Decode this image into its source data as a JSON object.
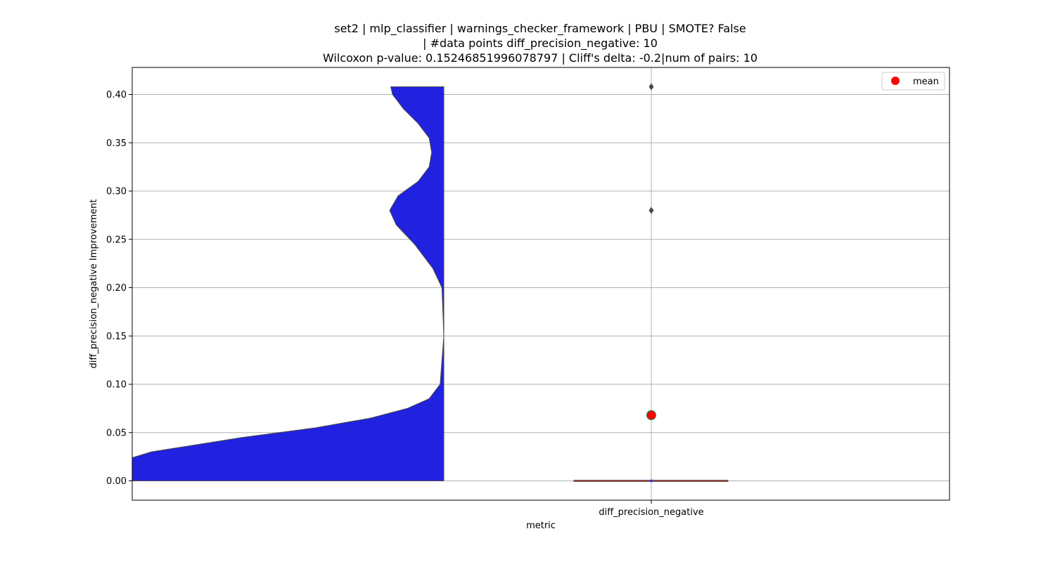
{
  "chart_data": {
    "type": "violin",
    "title_lines": [
      "set2 | mlp_classifier | warnings_checker_framework | PBU | SMOTE? False",
      "| #data points diff_precision_negative: 10",
      "Wilcoxon p-value: 0.15246851996078797 | Cliff's delta: -0.2|num of pairs: 10"
    ],
    "xlabel": "metric",
    "ylabel": "diff_precision_negative Improvement",
    "categories": [
      "diff_precision_negative"
    ],
    "ylim": [
      -0.02,
      0.428
    ],
    "yticks": [
      "0.00",
      "0.05",
      "0.10",
      "0.15",
      "0.20",
      "0.25",
      "0.30",
      "0.35",
      "0.40"
    ],
    "grid": true,
    "violin": {
      "color": "#2121e0",
      "y_min": 0.0,
      "y_max": 0.408,
      "density_profile": [
        [
          0.0,
          1.0
        ],
        [
          0.015,
          0.93
        ],
        [
          0.03,
          0.8
        ],
        [
          0.045,
          0.55
        ],
        [
          0.055,
          0.35
        ],
        [
          0.065,
          0.2
        ],
        [
          0.075,
          0.1
        ],
        [
          0.085,
          0.04
        ],
        [
          0.1,
          0.01
        ],
        [
          0.15,
          0.0
        ],
        [
          0.2,
          0.005
        ],
        [
          0.22,
          0.03
        ],
        [
          0.245,
          0.08
        ],
        [
          0.265,
          0.13
        ],
        [
          0.28,
          0.148
        ],
        [
          0.295,
          0.125
        ],
        [
          0.31,
          0.07
        ],
        [
          0.325,
          0.04
        ],
        [
          0.34,
          0.033
        ],
        [
          0.355,
          0.04
        ],
        [
          0.37,
          0.07
        ],
        [
          0.385,
          0.11
        ],
        [
          0.4,
          0.14
        ],
        [
          0.408,
          0.145
        ]
      ]
    },
    "box": {
      "q1": 0.0,
      "median": 0.0,
      "q3": 0.0,
      "whisker_low": 0.0,
      "whisker_high": 0.0
    },
    "outliers": [
      0.28,
      0.408
    ],
    "mean": {
      "value": 0.068,
      "color": "#ff0000",
      "edge_color": "#2e8b57"
    },
    "legend": {
      "entries": [
        {
          "label": "mean",
          "color": "#ff0000"
        }
      ],
      "position": "upper-right"
    }
  }
}
